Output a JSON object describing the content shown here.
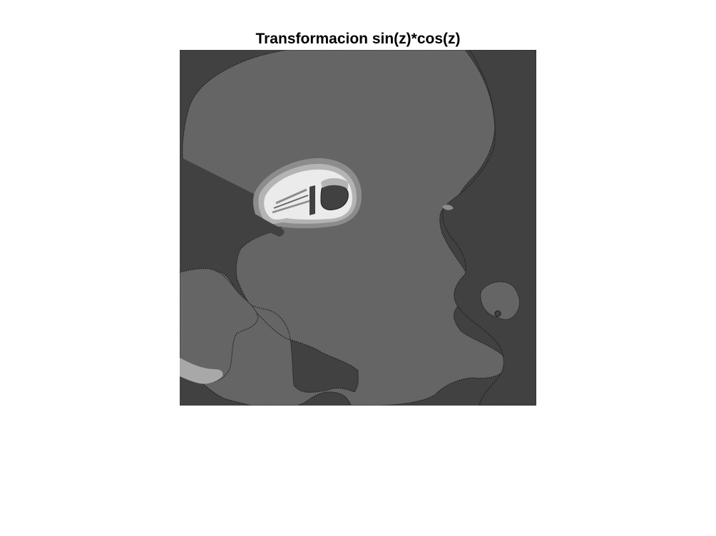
{
  "figure": {
    "title": "Transformacion sin(z)*cos(z)"
  },
  "image": {
    "colormap": "gray",
    "palette": {
      "dark": "#414141",
      "mid": "#656565",
      "light": "#8c8c8c",
      "lighter": "#b4b4b4",
      "brightest": "#ebebeb",
      "edge": "#1a1a1a"
    }
  }
}
